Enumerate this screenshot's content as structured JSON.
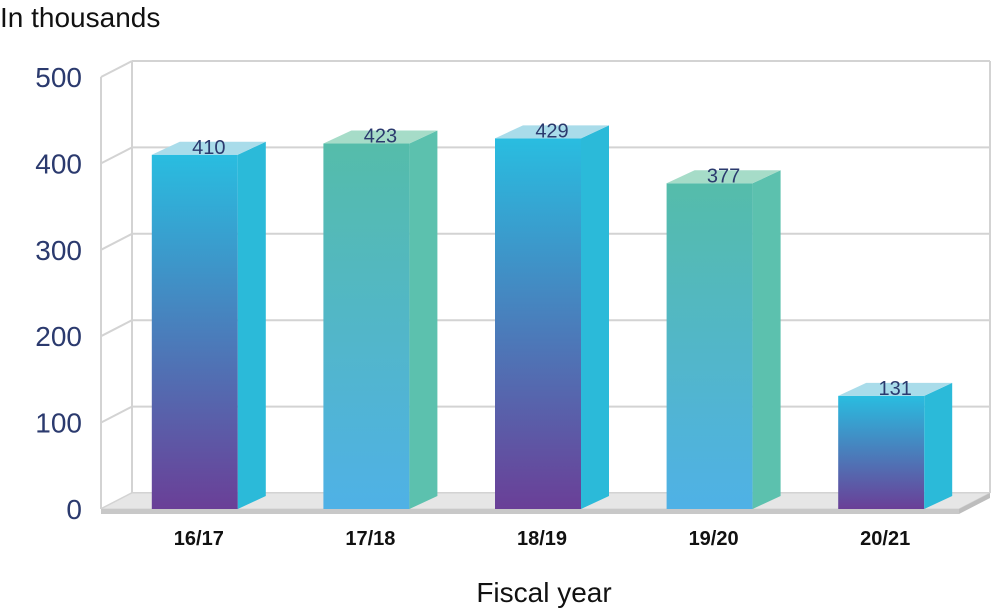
{
  "chart_data": {
    "type": "bar",
    "unit_label": "In thousands",
    "xlabel": "Fiscal year",
    "ylabel": "",
    "categories": [
      "16/17",
      "17/18",
      "18/19",
      "19/20",
      "20/21"
    ],
    "values": [
      410,
      423,
      429,
      377,
      131
    ],
    "data_labels": [
      "410",
      "423",
      "429",
      "377",
      "131"
    ],
    "ylim": [
      0,
      500
    ],
    "yticks": [
      0,
      100,
      200,
      300,
      400,
      500
    ],
    "grid": true,
    "style": "3d",
    "colors": {
      "bar_a_top": "#29bde0",
      "bar_a_bottom": "#6a3f97",
      "bar_a_side": "#2bbad9",
      "bar_a_cap": "#a9dcea",
      "bar_b_top": "#55bcaa",
      "bar_b_bottom": "#4fb1e6",
      "bar_b_side": "#5cc1ae",
      "bar_b_cap": "#a6dcc8",
      "floor": "#c8c8c8"
    }
  }
}
